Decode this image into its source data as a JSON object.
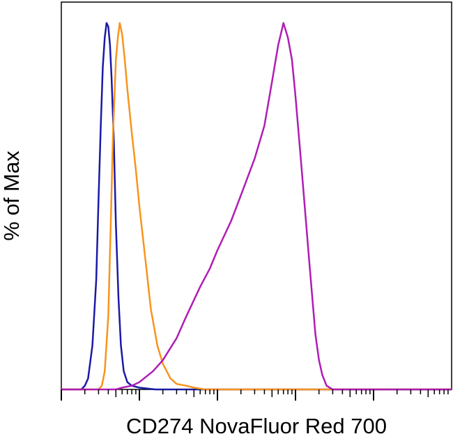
{
  "chart_data": {
    "type": "line",
    "xlabel": "CD274 NovaFluor Red 700",
    "ylabel": "% of Max",
    "x_scale": "log",
    "xlim": [
      1,
      100000
    ],
    "ylim": [
      0,
      100
    ],
    "series": [
      {
        "color": "#1a1aa6",
        "x": [
          1.8,
          2.0,
          2.2,
          2.5,
          2.8,
          3.0,
          3.2,
          3.4,
          3.6,
          3.8,
          4.0,
          4.2,
          4.4,
          4.7,
          5.0,
          5.4,
          5.8,
          6.3,
          7.0,
          8.0,
          10,
          13,
          16
        ],
        "y": [
          0,
          1,
          3,
          12,
          30,
          52,
          72,
          88,
          96,
          100,
          99,
          94,
          85,
          68,
          45,
          25,
          12,
          5,
          2,
          1,
          0.5,
          0.2,
          0
        ]
      },
      {
        "color": "#f7941d",
        "x": [
          3.0,
          3.3,
          3.6,
          4.0,
          4.3,
          4.6,
          5.0,
          5.3,
          5.6,
          6.0,
          6.5,
          7.0,
          8.0,
          9.0,
          10,
          12,
          14,
          17,
          20,
          25,
          30,
          40,
          50,
          60,
          70
        ],
        "y": [
          0,
          1,
          5,
          20,
          45,
          70,
          90,
          96,
          100,
          97,
          90,
          82,
          70,
          60,
          50,
          35,
          22,
          12,
          7,
          3,
          1.5,
          1,
          0.5,
          0.2,
          0
        ]
      },
      {
        "color": "#b01cb5",
        "x": [
          5,
          6,
          8,
          10,
          15,
          20,
          30,
          40,
          60,
          80,
          100,
          150,
          200,
          300,
          400,
          500,
          600,
          650,
          700,
          800,
          900,
          1000,
          1200,
          1500,
          1800,
          2000,
          2200,
          2500,
          3000
        ],
        "y": [
          0,
          0.5,
          1,
          2,
          5,
          8,
          14,
          20,
          28,
          33,
          38,
          46,
          53,
          63,
          72,
          84,
          94,
          97,
          100,
          96,
          90,
          80,
          60,
          35,
          15,
          8,
          4,
          1,
          0
        ]
      }
    ]
  }
}
